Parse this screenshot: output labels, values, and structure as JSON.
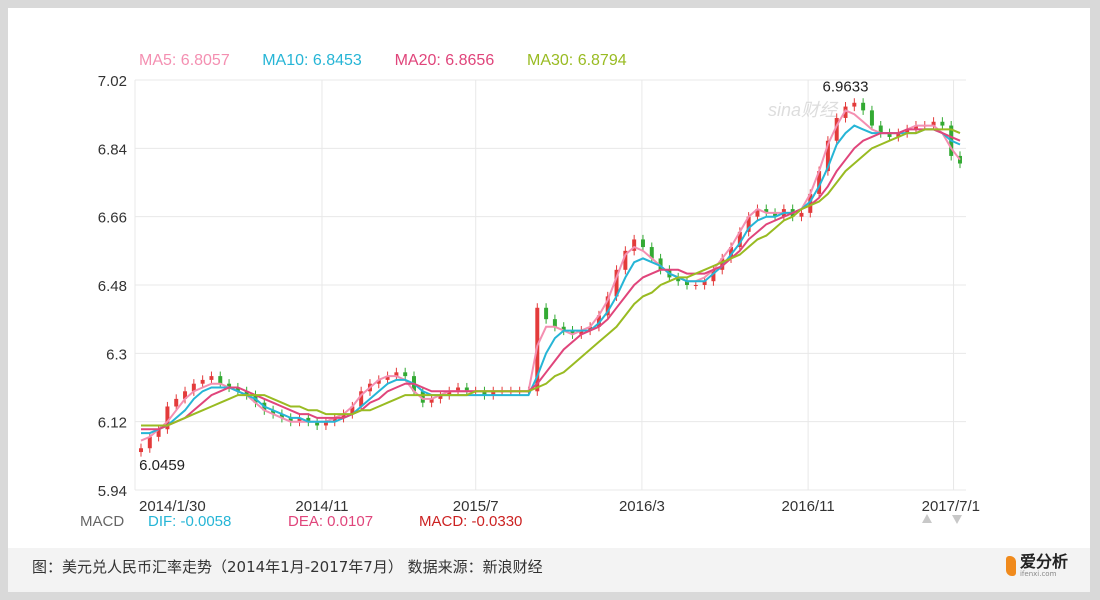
{
  "chart_data": {
    "type": "candlestick",
    "legend": [
      {
        "label": "MA5: 6.8057",
        "color": "#f48fb1"
      },
      {
        "label": "MA10: 6.8453",
        "color": "#26b5d6"
      },
      {
        "label": "MA20: 6.8656",
        "color": "#e0457b"
      },
      {
        "label": "MA30: 6.8794",
        "color": "#99bb22"
      }
    ],
    "ylim": [
      5.94,
      7.02
    ],
    "yticks": [
      7.02,
      6.84,
      6.66,
      6.48,
      6.3,
      6.12,
      5.94
    ],
    "ytick_labels": [
      "7.02",
      "6.84",
      "6.66",
      "6.48",
      "6.3",
      "6.12",
      "5.94"
    ],
    "xticks": [
      {
        "label": "2014/1/30",
        "t": 0.0
      },
      {
        "label": "2014/11",
        "t": 0.225
      },
      {
        "label": "2015/7",
        "t": 0.41
      },
      {
        "label": "2016/3",
        "t": 0.61
      },
      {
        "label": "2016/11",
        "t": 0.81
      },
      {
        "label": "2017/7/1",
        "t": 0.985
      }
    ],
    "annotations": [
      {
        "text": "6.9633",
        "t": 0.855,
        "value": 6.9633,
        "position": "above"
      },
      {
        "text": "6.0459",
        "t": 0.005,
        "value": 6.0459,
        "position": "below"
      }
    ],
    "closes": [
      6.05,
      6.08,
      6.1,
      6.16,
      6.18,
      6.2,
      6.22,
      6.23,
      6.24,
      6.22,
      6.21,
      6.2,
      6.19,
      6.17,
      6.15,
      6.14,
      6.13,
      6.12,
      6.13,
      6.12,
      6.11,
      6.12,
      6.13,
      6.14,
      6.16,
      6.2,
      6.22,
      6.23,
      6.24,
      6.25,
      6.24,
      6.2,
      6.17,
      6.18,
      6.19,
      6.2,
      6.21,
      6.2,
      6.2,
      6.19,
      6.2,
      6.2,
      6.2,
      6.2,
      6.2,
      6.42,
      6.39,
      6.37,
      6.36,
      6.35,
      6.36,
      6.37,
      6.4,
      6.45,
      6.52,
      6.57,
      6.6,
      6.58,
      6.55,
      6.52,
      6.5,
      6.49,
      6.48,
      6.48,
      6.49,
      6.52,
      6.55,
      6.58,
      6.62,
      6.66,
      6.68,
      6.67,
      6.66,
      6.68,
      6.66,
      6.67,
      6.72,
      6.78,
      6.86,
      6.92,
      6.95,
      6.96,
      6.94,
      6.9,
      6.88,
      6.87,
      6.88,
      6.89,
      6.9,
      6.9,
      6.91,
      6.9,
      6.82,
      6.8
    ],
    "ma": {
      "MA5": [
        6.07,
        6.08,
        6.1,
        6.12,
        6.15,
        6.18,
        6.2,
        6.21,
        6.22,
        6.22,
        6.21,
        6.2,
        6.19,
        6.17,
        6.15,
        6.14,
        6.13,
        6.12,
        6.12,
        6.12,
        6.12,
        6.12,
        6.13,
        6.14,
        6.16,
        6.19,
        6.21,
        6.23,
        6.24,
        6.24,
        6.23,
        6.2,
        6.18,
        6.18,
        6.19,
        6.2,
        6.2,
        6.2,
        6.2,
        6.2,
        6.2,
        6.2,
        6.2,
        6.2,
        6.2,
        6.32,
        6.37,
        6.37,
        6.36,
        6.35,
        6.36,
        6.37,
        6.4,
        6.44,
        6.5,
        6.56,
        6.58,
        6.57,
        6.55,
        6.53,
        6.51,
        6.5,
        6.49,
        6.49,
        6.5,
        6.52,
        6.55,
        6.58,
        6.62,
        6.66,
        6.68,
        6.67,
        6.67,
        6.67,
        6.67,
        6.68,
        6.72,
        6.78,
        6.85,
        6.9,
        6.94,
        6.93,
        6.91,
        6.89,
        6.88,
        6.88,
        6.88,
        6.89,
        6.9,
        6.9,
        6.9,
        6.88,
        6.84,
        6.81
      ],
      "MA10": [
        6.09,
        6.09,
        6.1,
        6.11,
        6.13,
        6.15,
        6.18,
        6.2,
        6.21,
        6.21,
        6.21,
        6.2,
        6.19,
        6.18,
        6.16,
        6.15,
        6.14,
        6.13,
        6.13,
        6.12,
        6.12,
        6.12,
        6.12,
        6.13,
        6.14,
        6.16,
        6.18,
        6.2,
        6.22,
        6.23,
        6.23,
        6.22,
        6.2,
        6.19,
        6.19,
        6.19,
        6.19,
        6.19,
        6.19,
        6.19,
        6.19,
        6.19,
        6.19,
        6.19,
        6.19,
        6.24,
        6.3,
        6.34,
        6.36,
        6.36,
        6.36,
        6.36,
        6.38,
        6.41,
        6.45,
        6.5,
        6.54,
        6.55,
        6.54,
        6.53,
        6.51,
        6.5,
        6.49,
        6.49,
        6.49,
        6.51,
        6.53,
        6.56,
        6.59,
        6.63,
        6.65,
        6.66,
        6.66,
        6.67,
        6.67,
        6.68,
        6.7,
        6.74,
        6.79,
        6.85,
        6.88,
        6.9,
        6.89,
        6.88,
        6.88,
        6.88,
        6.88,
        6.88,
        6.88,
        6.89,
        6.89,
        6.88,
        6.86,
        6.85
      ],
      "MA20": [
        6.1,
        6.1,
        6.1,
        6.11,
        6.12,
        6.13,
        6.15,
        6.17,
        6.19,
        6.2,
        6.21,
        6.21,
        6.2,
        6.19,
        6.18,
        6.17,
        6.16,
        6.15,
        6.14,
        6.14,
        6.13,
        6.13,
        6.13,
        6.13,
        6.14,
        6.15,
        6.17,
        6.18,
        6.2,
        6.21,
        6.22,
        6.22,
        6.21,
        6.2,
        6.2,
        6.2,
        6.2,
        6.2,
        6.2,
        6.2,
        6.2,
        6.2,
        6.2,
        6.2,
        6.2,
        6.22,
        6.25,
        6.28,
        6.31,
        6.33,
        6.35,
        6.36,
        6.37,
        6.39,
        6.42,
        6.45,
        6.48,
        6.5,
        6.51,
        6.52,
        6.52,
        6.52,
        6.51,
        6.51,
        6.51,
        6.52,
        6.53,
        6.55,
        6.57,
        6.6,
        6.62,
        6.64,
        6.65,
        6.66,
        6.67,
        6.68,
        6.69,
        6.71,
        6.74,
        6.78,
        6.81,
        6.84,
        6.86,
        6.87,
        6.88,
        6.88,
        6.88,
        6.89,
        6.89,
        6.89,
        6.89,
        6.88,
        6.87,
        6.86
      ],
      "MA30": [
        6.11,
        6.11,
        6.11,
        6.11,
        6.12,
        6.13,
        6.14,
        6.15,
        6.16,
        6.17,
        6.18,
        6.19,
        6.19,
        6.19,
        6.19,
        6.18,
        6.17,
        6.16,
        6.16,
        6.15,
        6.15,
        6.14,
        6.14,
        6.14,
        6.14,
        6.15,
        6.15,
        6.16,
        6.17,
        6.18,
        6.19,
        6.19,
        6.19,
        6.19,
        6.19,
        6.19,
        6.19,
        6.19,
        6.2,
        6.2,
        6.2,
        6.2,
        6.2,
        6.2,
        6.2,
        6.21,
        6.22,
        6.24,
        6.25,
        6.27,
        6.29,
        6.31,
        6.33,
        6.35,
        6.37,
        6.4,
        6.43,
        6.45,
        6.46,
        6.48,
        6.49,
        6.5,
        6.5,
        6.51,
        6.52,
        6.53,
        6.54,
        6.55,
        6.56,
        6.58,
        6.6,
        6.61,
        6.63,
        6.65,
        6.66,
        6.68,
        6.69,
        6.7,
        6.72,
        6.75,
        6.78,
        6.8,
        6.82,
        6.84,
        6.85,
        6.86,
        6.87,
        6.88,
        6.88,
        6.89,
        6.89,
        6.89,
        6.89,
        6.88
      ]
    },
    "colors": {
      "up": "#e33b3b",
      "down": "#33aa33",
      "grid": "#e8e8e8",
      "axis_text": "#333333"
    },
    "macd_legend": [
      {
        "label": "MACD",
        "color": "#666666"
      },
      {
        "label": "DIF: -0.0058",
        "color": "#26b5d6"
      },
      {
        "label": "DEA: 0.0107",
        "color": "#e0457b"
      },
      {
        "label": "MACD: -0.0330",
        "color": "#cc2222"
      }
    ],
    "watermark": "sina财经"
  },
  "caption": {
    "text": "图：美元兑人民币汇率走势（2014年1月-2017年7月）   数据来源：新浪财经"
  },
  "brand": {
    "name": "爱分析",
    "url": "ifenxi.com"
  }
}
